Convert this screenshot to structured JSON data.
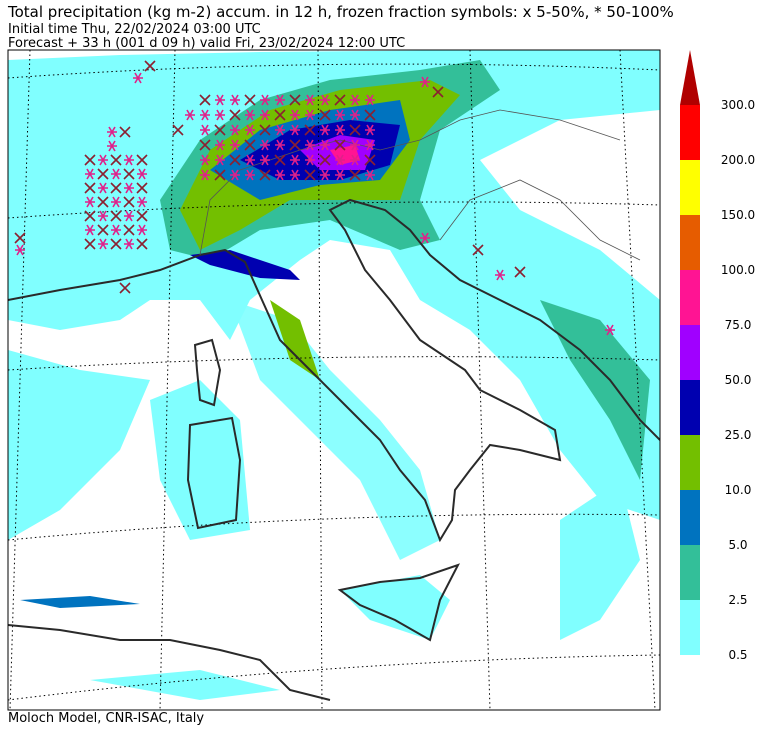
{
  "header": {
    "title": "Total precipitation (kg m-2) accum. in 12 h, frozen fraction symbols: x 5-50%, * 50-100%",
    "initial_time": "Initial time  Thu, 22/02/2024  03:00 UTC",
    "forecast": "Forecast  +  33 h  (001 d 09 h)  valid Fri, 23/02/2024 12:00 UTC"
  },
  "colorbar": {
    "levels": [
      "0.5",
      "2.5",
      "5.0",
      "10.0",
      "25.0",
      "50.0",
      "75.0",
      "100.0",
      "150.0",
      "200.0",
      "300.0"
    ],
    "colors": [
      "#80ffff",
      "#33bf99",
      "#0073bf",
      "#73bf00",
      "#0000b0",
      "#a000ff",
      "#ff1493",
      "#e65c00",
      "#ffff00",
      "#ff0000"
    ],
    "extend_color": "#b00000"
  },
  "footer": "Moloch Model, CNR-ISAC, Italy"
}
